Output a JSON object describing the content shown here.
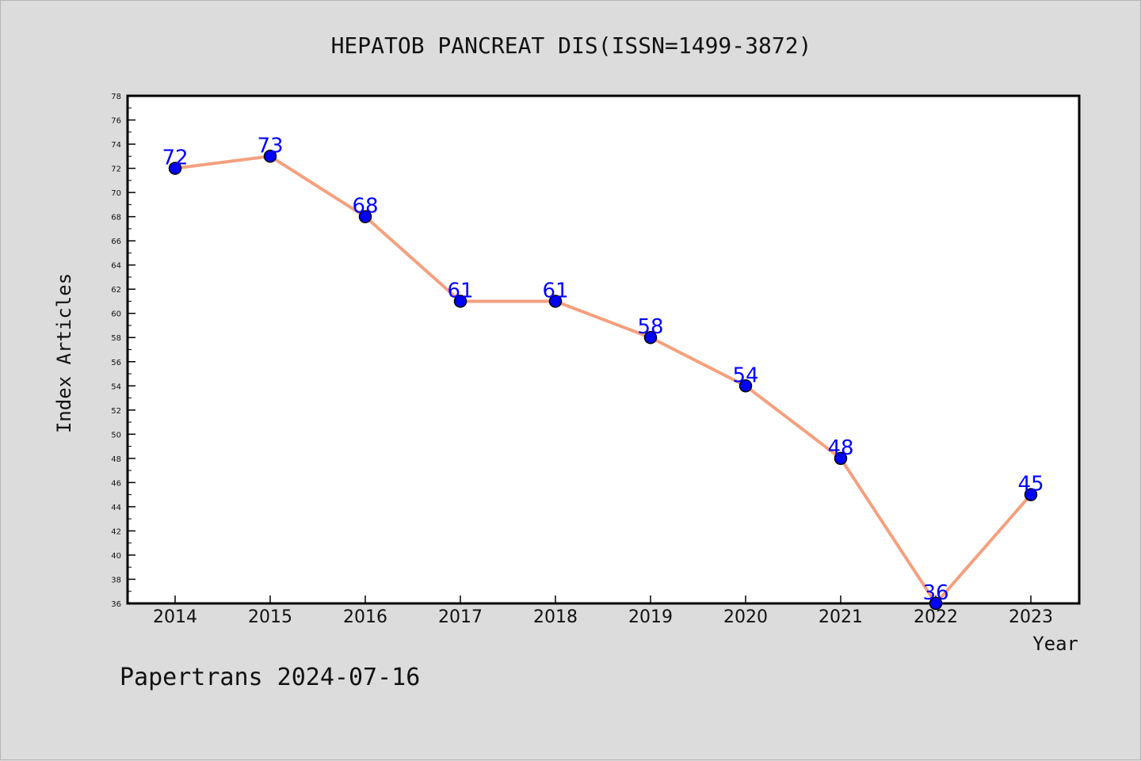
{
  "chart_data": {
    "type": "line",
    "title": "HEPATOB PANCREAT DIS(ISSN=1499-3872)",
    "xlabel": "Year",
    "ylabel": "Index Articles",
    "x": [
      "2014",
      "2015",
      "2016",
      "2017",
      "2018",
      "2019",
      "2020",
      "2021",
      "2022",
      "2023"
    ],
    "series": [
      {
        "values": [
          72,
          73,
          68,
          61,
          61,
          58,
          54,
          48,
          36,
          45
        ]
      }
    ],
    "ylim": [
      36,
      78
    ],
    "yticks": [
      36,
      38,
      40,
      42,
      44,
      46,
      48,
      50,
      52,
      54,
      56,
      58,
      60,
      62,
      64,
      66,
      68,
      70,
      72,
      74,
      76,
      78
    ],
    "grid": false,
    "data_labels": true,
    "colors": {
      "line": "#f4a07e",
      "marker": "#0000ff",
      "label": "#0000ff",
      "background": "#dcdcdc",
      "plot_background": "#ffffff"
    }
  },
  "footer": {
    "text": "Papertrans 2024-07-16"
  }
}
